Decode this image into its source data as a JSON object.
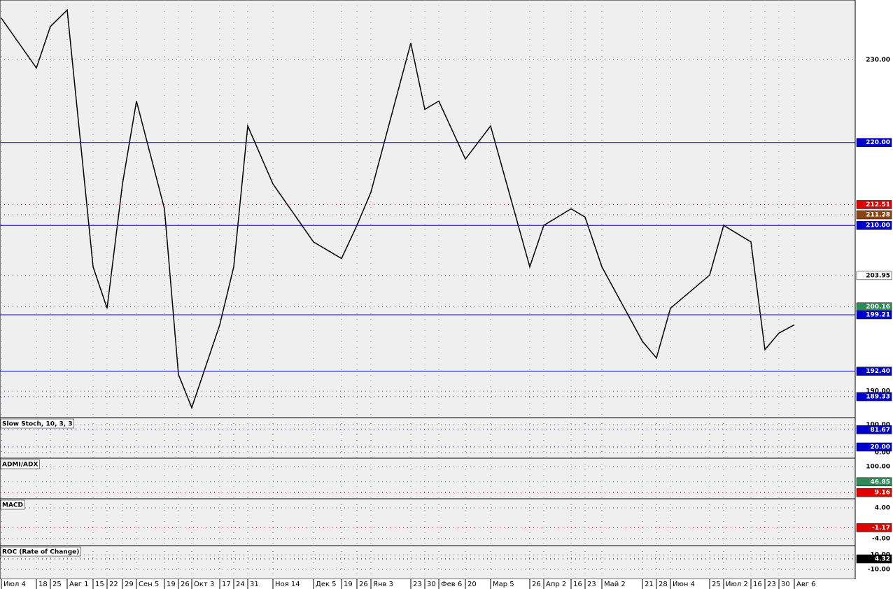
{
  "chart_data": {
    "type": "line",
    "color": "#000000",
    "grid": true,
    "categories": [
      "Июл 4",
      "18",
      "25",
      "Авг 1",
      "15",
      "22",
      "29",
      "Сен 5",
      "19",
      "26",
      "Окт 3",
      "17",
      "24",
      "31",
      "Ноя 14",
      "Дек 5",
      "19",
      "26",
      "Янв 3",
      "23",
      "30",
      "Фев 6",
      "20",
      "Мар 5",
      "26",
      "Апр 2",
      "16",
      "23",
      "Май 2",
      "21",
      "28",
      "Июн 4",
      "25",
      "Июл 2",
      "16",
      "23",
      "30",
      "Авг 6"
    ],
    "values": [
      235,
      229,
      234,
      236,
      205,
      200,
      215,
      225,
      212,
      192,
      188,
      198,
      205,
      222,
      215,
      208,
      206,
      210,
      214,
      232,
      224,
      225,
      218,
      222,
      205,
      210,
      212,
      211,
      205,
      196,
      194,
      200,
      204,
      210,
      208,
      195,
      197,
      198
    ],
    "ylim": [
      186.8,
      237.2
    ],
    "yticks": [
      {
        "value": 230,
        "label": "230.00"
      },
      {
        "value": 220,
        "label": "220.00",
        "color": "#0000cc",
        "line": true
      },
      {
        "value": 212.51,
        "label": "212.51",
        "color": "#e00000"
      },
      {
        "value": 211.28,
        "label": "211.28",
        "color": "#8b4513"
      },
      {
        "value": 210,
        "label": "210.00",
        "color": "#0000cc",
        "line": true
      },
      {
        "value": 203.95,
        "label": "203.95",
        "color": "#ffffff"
      },
      {
        "value": 200.16,
        "label": "200.16",
        "color": "#2e8b57"
      },
      {
        "value": 199.21,
        "label": "199.21",
        "color": "#0000cc",
        "line": true
      },
      {
        "value": 192.4,
        "label": "192.40",
        "color": "#0000cc",
        "line": true
      },
      {
        "value": 190,
        "label": "190.00"
      },
      {
        "value": 189.33,
        "label": "189.33",
        "color": "#0000cc"
      }
    ]
  },
  "panels": [
    {
      "title": "Slow Stoch, 10, 3, 3",
      "ylim": [
        -20,
        125
      ],
      "yticks": [
        {
          "value": 100,
          "label": "100.00"
        },
        {
          "value": 81.67,
          "label": "81.67",
          "color": "#0000cc"
        },
        {
          "value": 20,
          "label": "20.00",
          "color": "#0000cc"
        },
        {
          "value": 0,
          "label": "0.00"
        }
      ]
    },
    {
      "title": "ADMI/ADX",
      "ylim": [
        -12.3,
        129.5
      ],
      "yticks": [
        {
          "value": 100,
          "label": "100.00"
        },
        {
          "value": 46.85,
          "label": "46.85",
          "color": "#2e8b57"
        },
        {
          "value": 9.16,
          "label": "9.16",
          "color": "#e00000"
        }
      ]
    },
    {
      "title": "MACD",
      "ylim": [
        -5.82,
        6.36
      ],
      "yticks": [
        {
          "value": 4,
          "label": "4.00"
        },
        {
          "value": -1.17,
          "label": "-1.17",
          "color": "#e00000"
        },
        {
          "value": -4,
          "label": "-4.00"
        }
      ]
    },
    {
      "title": "ROC (Rate of Change)",
      "ylim": [
        -23.3,
        22.4
      ],
      "yticks": [
        {
          "value": 10,
          "label": "10.00"
        },
        {
          "value": 4.32,
          "label": "4.32",
          "color": "#000000"
        },
        {
          "value": -10,
          "label": "-10.00"
        }
      ]
    }
  ]
}
